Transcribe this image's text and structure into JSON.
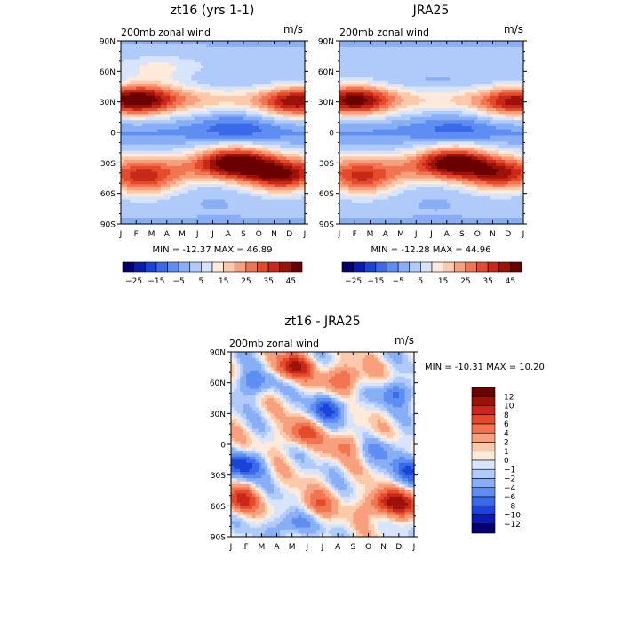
{
  "chart_data": [
    {
      "type": "heatmap",
      "title": "zt16 (yrs 1-1)",
      "subtitle": "200mb zonal wind",
      "units": "m/s",
      "stats": "MIN = -12.37 MAX =  46.89",
      "x_ticks": [
        "J",
        "F",
        "M",
        "A",
        "M",
        "J",
        "J",
        "A",
        "S",
        "O",
        "N",
        "D",
        "J"
      ],
      "y_ticks": [
        "90N",
        "60N",
        "30N",
        "0",
        "30S",
        "60S",
        "90S"
      ],
      "ylim": [
        -90,
        90
      ],
      "colorbar_labels": [
        "-25",
        "-15",
        "-5",
        "5",
        "15",
        "25",
        "35",
        "45"
      ],
      "colorbar_range": [
        -30,
        50
      ],
      "colorbar_step": 5,
      "features": [
        {
          "lat": 32,
          "month": 1.0,
          "value": 44
        },
        {
          "lat": 30,
          "month": 11.5,
          "value": 38
        },
        {
          "lat": 33,
          "month": 4.0,
          "value": 12
        },
        {
          "lat": 5,
          "month": 7.5,
          "value": -12
        },
        {
          "lat": -28,
          "month": 7.5,
          "value": 46
        },
        {
          "lat": -48,
          "month": 1.5,
          "value": 32
        },
        {
          "lat": -45,
          "month": 10.5,
          "value": 38
        },
        {
          "lat": 60,
          "month": 2.5,
          "value": 10
        }
      ]
    },
    {
      "type": "heatmap",
      "title": "JRA25",
      "subtitle": "200mb zonal wind",
      "units": "m/s",
      "stats": "MIN = -12.28 MAX =  44.96",
      "x_ticks": [
        "J",
        "F",
        "M",
        "A",
        "M",
        "J",
        "J",
        "A",
        "S",
        "O",
        "N",
        "D",
        "J"
      ],
      "y_ticks": [
        "90N",
        "60N",
        "30N",
        "0",
        "30S",
        "60S",
        "90S"
      ],
      "ylim": [
        -90,
        90
      ],
      "colorbar_labels": [
        "-25",
        "-15",
        "-5",
        "5",
        "15",
        "25",
        "35",
        "45"
      ],
      "colorbar_range": [
        -30,
        50
      ],
      "colorbar_step": 5,
      "features": [
        {
          "lat": 32,
          "month": 1.0,
          "value": 42
        },
        {
          "lat": 30,
          "month": 11.5,
          "value": 36
        },
        {
          "lat": 5,
          "month": 7.5,
          "value": -10
        },
        {
          "lat": -28,
          "month": 7.5,
          "value": 44
        },
        {
          "lat": -48,
          "month": 1.5,
          "value": 30
        },
        {
          "lat": -45,
          "month": 10.5,
          "value": 32
        }
      ]
    },
    {
      "type": "heatmap",
      "title": "zt16 - JRA25",
      "subtitle": "200mb zonal wind",
      "units": "m/s",
      "stats": "MIN = -10.31 MAX =  10.20",
      "x_ticks": [
        "J",
        "F",
        "M",
        "A",
        "M",
        "J",
        "J",
        "A",
        "S",
        "O",
        "N",
        "D",
        "J"
      ],
      "y_ticks": [
        "90N",
        "60N",
        "30N",
        "0",
        "30S",
        "60S",
        "90S"
      ],
      "ylim": [
        -90,
        90
      ],
      "colorbar_labels": [
        "12",
        "10",
        "8",
        "6",
        "4",
        "2",
        "1",
        "0",
        "-1",
        "-2",
        "-4",
        "-6",
        "-8",
        "-10",
        "-12"
      ],
      "colorbar_levels": [
        -12,
        -10,
        -8,
        -6,
        -4,
        -2,
        -1,
        0,
        1,
        2,
        4,
        6,
        8,
        10,
        12
      ],
      "features": [
        {
          "lat": 75,
          "month": 4.0,
          "value": 10
        },
        {
          "lat": 60,
          "month": 1.5,
          "value": -6
        },
        {
          "lat": 35,
          "month": 6.5,
          "value": -8
        },
        {
          "lat": 65,
          "month": 7.5,
          "value": 6
        },
        {
          "lat": 10,
          "month": 4.5,
          "value": 6
        },
        {
          "lat": -20,
          "month": 0.8,
          "value": -9
        },
        {
          "lat": -25,
          "month": 11.8,
          "value": -8
        },
        {
          "lat": -55,
          "month": 0.5,
          "value": 8
        },
        {
          "lat": -58,
          "month": 10.0,
          "value": 8
        },
        {
          "lat": -58,
          "month": 11.7,
          "value": 7
        },
        {
          "lat": -60,
          "month": 5.5,
          "value": 5
        },
        {
          "lat": -78,
          "month": 4.0,
          "value": -5
        },
        {
          "lat": 50,
          "month": 11.0,
          "value": -6
        },
        {
          "lat": -5,
          "month": 10.0,
          "value": -4
        },
        {
          "lat": 0,
          "month": 7.5,
          "value": 4
        }
      ]
    }
  ]
}
